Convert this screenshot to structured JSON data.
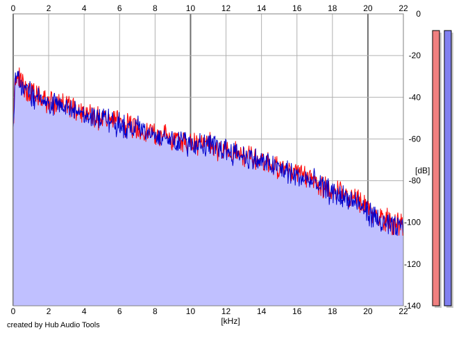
{
  "chart_data": {
    "type": "area",
    "xlabel": "[kHz]",
    "ylabel": "[dB]",
    "xlim": [
      0,
      22
    ],
    "ylim": [
      -140,
      0
    ],
    "x_ticks": [
      0,
      2,
      4,
      6,
      8,
      10,
      12,
      14,
      16,
      18,
      20,
      22
    ],
    "y_ticks": [
      0,
      -20,
      -40,
      -60,
      -80,
      -100,
      -120,
      -140
    ],
    "grid": true,
    "series": [
      {
        "color": "#ff0000",
        "x": [
          0,
          0.1,
          0.3,
          0.5,
          1,
          1.5,
          2,
          3,
          4,
          5,
          6,
          7,
          8,
          9,
          10,
          11,
          12,
          13,
          14,
          15,
          16,
          17,
          18,
          19,
          20,
          20.5,
          21,
          21.5,
          22
        ],
        "values": [
          -55,
          -32,
          -30,
          -34,
          -38,
          -41,
          -42,
          -44,
          -47,
          -50,
          -52,
          -55,
          -57,
          -60,
          -62,
          -63,
          -65,
          -68,
          -70,
          -73,
          -77,
          -80,
          -85,
          -88,
          -93,
          -97,
          -99,
          -100,
          -101
        ]
      },
      {
        "color": "#0000cc",
        "x": [
          0,
          0.1,
          0.3,
          0.5,
          1,
          1.5,
          2,
          3,
          4,
          5,
          6,
          7,
          8,
          9,
          10,
          11,
          12,
          13,
          14,
          15,
          16,
          17,
          18,
          19,
          20,
          20.5,
          21,
          21.5,
          22
        ],
        "values": [
          -56,
          -33,
          -31,
          -35,
          -39,
          -42,
          -43,
          -45,
          -48,
          -50,
          -53,
          -55,
          -58,
          -60,
          -62,
          -63,
          -65,
          -68,
          -71,
          -74,
          -78,
          -81,
          -86,
          -89,
          -95,
          -99,
          -101,
          -103,
          -102
        ]
      }
    ],
    "fill_color": "#c0c0ff",
    "level_meters": [
      {
        "color": "#f08080",
        "level_db": -8
      },
      {
        "color": "#8080f0",
        "level_db": -8
      }
    ]
  },
  "footer": {
    "credit": "created by Hub Audio Tools"
  }
}
